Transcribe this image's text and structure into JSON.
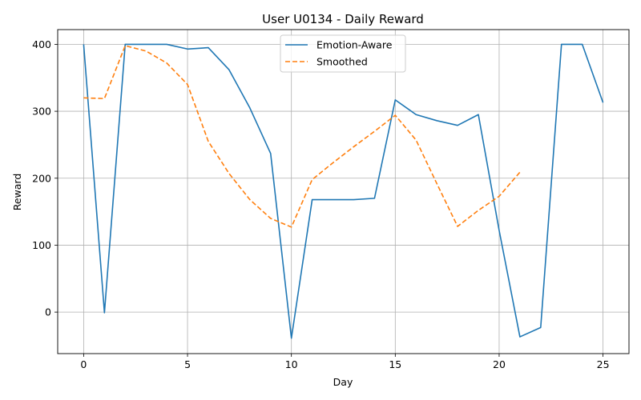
{
  "chart_data": {
    "type": "line",
    "title": "User U0134 - Daily Reward",
    "xlabel": "Day",
    "ylabel": "Reward",
    "xlim": [
      -1.25,
      26.25
    ],
    "ylim": [
      -62,
      422
    ],
    "xticks": [
      0,
      5,
      10,
      15,
      20,
      25
    ],
    "yticks": [
      0,
      100,
      200,
      300,
      400
    ],
    "grid": true,
    "legend_position": "upper center",
    "colors": {
      "emotion_aware": "#1f77b4",
      "smoothed": "#ff7f0e"
    },
    "series": [
      {
        "name": "Emotion-Aware",
        "style": "solid",
        "x": [
          0,
          1,
          2,
          3,
          4,
          5,
          6,
          7,
          8,
          9,
          10,
          11,
          12,
          13,
          14,
          15,
          16,
          17,
          18,
          19,
          20,
          21,
          22,
          23,
          24,
          25
        ],
        "values": [
          400,
          -1,
          400,
          400,
          400,
          393,
          395,
          362,
          305,
          237,
          -39,
          168,
          168,
          168,
          170,
          317,
          295,
          286,
          279,
          295,
          122,
          -37,
          -23,
          400,
          400,
          313
        ]
      },
      {
        "name": "Smoothed",
        "style": "dashed",
        "x": [
          0,
          1,
          2,
          3,
          4,
          5,
          6,
          7,
          8,
          9,
          10,
          11,
          12,
          13,
          14,
          15,
          16,
          17,
          18,
          19,
          20,
          21
        ],
        "values": [
          320,
          319,
          398,
          390,
          372,
          340,
          255,
          207,
          168,
          140,
          127,
          198,
          223,
          247,
          270,
          294,
          257,
          192,
          128,
          152,
          173,
          209
        ]
      }
    ]
  }
}
